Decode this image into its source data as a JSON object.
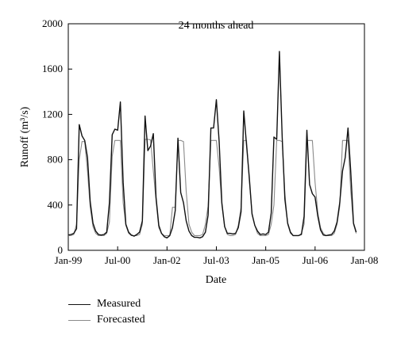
{
  "chart_data": {
    "type": "line",
    "title": "24 months ahead",
    "xlabel": "Date",
    "ylabel": "Runoff (m³/s)",
    "ylim": [
      0,
      2000
    ],
    "yticks": [
      0,
      400,
      800,
      1200,
      1600,
      2000
    ],
    "xlim": [
      "Jan-99",
      "Jan-08"
    ],
    "xticks": [
      "Jan-99",
      "Jul-00",
      "Jan-02",
      "Jul-03",
      "Jan-05",
      "Jul-06",
      "Jan-08"
    ],
    "grid": false,
    "legend_position": "bottom-left",
    "series": [
      {
        "name": "Measured",
        "color": "#111111",
        "values": [
          [
            "1999-01",
            135
          ],
          [
            "1999-02",
            140
          ],
          [
            "1999-03",
            150
          ],
          [
            "1999-04",
            190
          ],
          [
            "1999-05",
            1110
          ],
          [
            "1999-06",
            1010
          ],
          [
            "1999-07",
            970
          ],
          [
            "1999-08",
            820
          ],
          [
            "1999-09",
            430
          ],
          [
            "1999-10",
            240
          ],
          [
            "1999-11",
            170
          ],
          [
            "1999-12",
            140
          ],
          [
            "2000-01",
            135
          ],
          [
            "2000-02",
            140
          ],
          [
            "2000-03",
            160
          ],
          [
            "2000-04",
            420
          ],
          [
            "2000-05",
            1020
          ],
          [
            "2000-06",
            1070
          ],
          [
            "2000-07",
            1060
          ],
          [
            "2000-08",
            1310
          ],
          [
            "2000-09",
            600
          ],
          [
            "2000-10",
            230
          ],
          [
            "2000-11",
            160
          ],
          [
            "2000-12",
            135
          ],
          [
            "2001-01",
            125
          ],
          [
            "2001-02",
            140
          ],
          [
            "2001-03",
            160
          ],
          [
            "2001-04",
            260
          ],
          [
            "2001-05",
            1185
          ],
          [
            "2001-06",
            880
          ],
          [
            "2001-07",
            920
          ],
          [
            "2001-08",
            1030
          ],
          [
            "2001-09",
            470
          ],
          [
            "2001-10",
            220
          ],
          [
            "2001-11",
            150
          ],
          [
            "2001-12",
            120
          ],
          [
            "2002-01",
            110
          ],
          [
            "2002-02",
            130
          ],
          [
            "2002-03",
            200
          ],
          [
            "2002-04",
            350
          ],
          [
            "2002-05",
            990
          ],
          [
            "2002-06",
            510
          ],
          [
            "2002-07",
            420
          ],
          [
            "2002-08",
            260
          ],
          [
            "2002-09",
            170
          ],
          [
            "2002-10",
            130
          ],
          [
            "2002-11",
            115
          ],
          [
            "2002-12",
            115
          ],
          [
            "2003-01",
            110
          ],
          [
            "2003-02",
            120
          ],
          [
            "2003-03",
            160
          ],
          [
            "2003-04",
            310
          ],
          [
            "2003-05",
            1080
          ],
          [
            "2003-06",
            1080
          ],
          [
            "2003-07",
            1330
          ],
          [
            "2003-08",
            960
          ],
          [
            "2003-09",
            420
          ],
          [
            "2003-10",
            210
          ],
          [
            "2003-11",
            150
          ],
          [
            "2003-12",
            150
          ],
          [
            "2004-01",
            145
          ],
          [
            "2004-02",
            150
          ],
          [
            "2004-03",
            200
          ],
          [
            "2004-04",
            340
          ],
          [
            "2004-05",
            1230
          ],
          [
            "2004-06",
            930
          ],
          [
            "2004-07",
            650
          ],
          [
            "2004-08",
            320
          ],
          [
            "2004-09",
            220
          ],
          [
            "2004-10",
            170
          ],
          [
            "2004-11",
            140
          ],
          [
            "2004-12",
            145
          ],
          [
            "2005-01",
            140
          ],
          [
            "2005-02",
            160
          ],
          [
            "2005-03",
            330
          ],
          [
            "2005-04",
            1000
          ],
          [
            "2005-05",
            980
          ],
          [
            "2005-06",
            1755
          ],
          [
            "2005-07",
            1000
          ],
          [
            "2005-08",
            450
          ],
          [
            "2005-09",
            240
          ],
          [
            "2005-10",
            160
          ],
          [
            "2005-11",
            130
          ],
          [
            "2005-12",
            130
          ],
          [
            "2006-01",
            130
          ],
          [
            "2006-02",
            140
          ],
          [
            "2006-03",
            300
          ],
          [
            "2006-04",
            1060
          ],
          [
            "2006-05",
            580
          ],
          [
            "2006-06",
            500
          ],
          [
            "2006-07",
            470
          ],
          [
            "2006-08",
            300
          ],
          [
            "2006-09",
            180
          ],
          [
            "2006-10",
            135
          ],
          [
            "2006-11",
            130
          ],
          [
            "2006-12",
            135
          ],
          [
            "2007-01",
            140
          ],
          [
            "2007-02",
            170
          ],
          [
            "2007-03",
            250
          ],
          [
            "2007-04",
            420
          ],
          [
            "2007-05",
            700
          ],
          [
            "2007-06",
            820
          ],
          [
            "2007-07",
            1080
          ],
          [
            "2007-08",
            700
          ],
          [
            "2007-09",
            240
          ],
          [
            "2007-10",
            160
          ]
        ]
      },
      {
        "name": "Forecasted",
        "color": "#8a8a8a",
        "values": [
          [
            "1999-01",
            130
          ],
          [
            "1999-02",
            130
          ],
          [
            "1999-03",
            140
          ],
          [
            "1999-04",
            230
          ],
          [
            "1999-05",
            800
          ],
          [
            "1999-06",
            960
          ],
          [
            "1999-07",
            960
          ],
          [
            "1999-08",
            700
          ],
          [
            "1999-09",
            380
          ],
          [
            "1999-10",
            210
          ],
          [
            "1999-11",
            150
          ],
          [
            "1999-12",
            130
          ],
          [
            "2000-01",
            130
          ],
          [
            "2000-02",
            130
          ],
          [
            "2000-03",
            150
          ],
          [
            "2000-04",
            250
          ],
          [
            "2000-05",
            830
          ],
          [
            "2000-06",
            970
          ],
          [
            "2000-07",
            970
          ],
          [
            "2000-08",
            970
          ],
          [
            "2000-09",
            420
          ],
          [
            "2000-10",
            220
          ],
          [
            "2000-11",
            150
          ],
          [
            "2000-12",
            130
          ],
          [
            "2001-01",
            130
          ],
          [
            "2001-02",
            130
          ],
          [
            "2001-03",
            140
          ],
          [
            "2001-04",
            230
          ],
          [
            "2001-05",
            980
          ],
          [
            "2001-06",
            980
          ],
          [
            "2001-07",
            975
          ],
          [
            "2001-08",
            700
          ],
          [
            "2001-09",
            440
          ],
          [
            "2001-10",
            200
          ],
          [
            "2001-11",
            150
          ],
          [
            "2001-12",
            130
          ],
          [
            "2002-01",
            130
          ],
          [
            "2002-02",
            130
          ],
          [
            "2002-03",
            380
          ],
          [
            "2002-04",
            380
          ],
          [
            "2002-05",
            970
          ],
          [
            "2002-06",
            970
          ],
          [
            "2002-07",
            960
          ],
          [
            "2002-08",
            520
          ],
          [
            "2002-09",
            230
          ],
          [
            "2002-10",
            160
          ],
          [
            "2002-11",
            130
          ],
          [
            "2002-12",
            130
          ],
          [
            "2003-01",
            130
          ],
          [
            "2003-02",
            140
          ],
          [
            "2003-03",
            230
          ],
          [
            "2003-04",
            390
          ],
          [
            "2003-05",
            970
          ],
          [
            "2003-06",
            970
          ],
          [
            "2003-07",
            970
          ],
          [
            "2003-08",
            730
          ],
          [
            "2003-09",
            400
          ],
          [
            "2003-10",
            210
          ],
          [
            "2003-11",
            140
          ],
          [
            "2003-12",
            130
          ],
          [
            "2004-01",
            130
          ],
          [
            "2004-02",
            140
          ],
          [
            "2004-03",
            220
          ],
          [
            "2004-04",
            380
          ],
          [
            "2004-05",
            970
          ],
          [
            "2004-06",
            970
          ],
          [
            "2004-07",
            620
          ],
          [
            "2004-08",
            330
          ],
          [
            "2004-09",
            220
          ],
          [
            "2004-10",
            150
          ],
          [
            "2004-11",
            130
          ],
          [
            "2004-12",
            130
          ],
          [
            "2005-01",
            130
          ],
          [
            "2005-02",
            140
          ],
          [
            "2005-03",
            230
          ],
          [
            "2005-04",
            400
          ],
          [
            "2005-05",
            970
          ],
          [
            "2005-06",
            970
          ],
          [
            "2005-07",
            960
          ],
          [
            "2005-08",
            500
          ],
          [
            "2005-09",
            230
          ],
          [
            "2005-10",
            150
          ],
          [
            "2005-11",
            130
          ],
          [
            "2005-12",
            130
          ],
          [
            "2006-01",
            130
          ],
          [
            "2006-02",
            150
          ],
          [
            "2006-03",
            230
          ],
          [
            "2006-04",
            970
          ],
          [
            "2006-05",
            970
          ],
          [
            "2006-06",
            970
          ],
          [
            "2006-07",
            600
          ],
          [
            "2006-08",
            330
          ],
          [
            "2006-09",
            200
          ],
          [
            "2006-10",
            150
          ],
          [
            "2006-11",
            130
          ],
          [
            "2006-12",
            130
          ],
          [
            "2007-01",
            130
          ],
          [
            "2007-02",
            150
          ],
          [
            "2007-03",
            230
          ],
          [
            "2007-04",
            390
          ],
          [
            "2007-05",
            970
          ],
          [
            "2007-06",
            970
          ],
          [
            "2007-07",
            970
          ],
          [
            "2007-08",
            530
          ],
          [
            "2007-09",
            230
          ],
          [
            "2007-10",
            150
          ]
        ]
      }
    ]
  }
}
